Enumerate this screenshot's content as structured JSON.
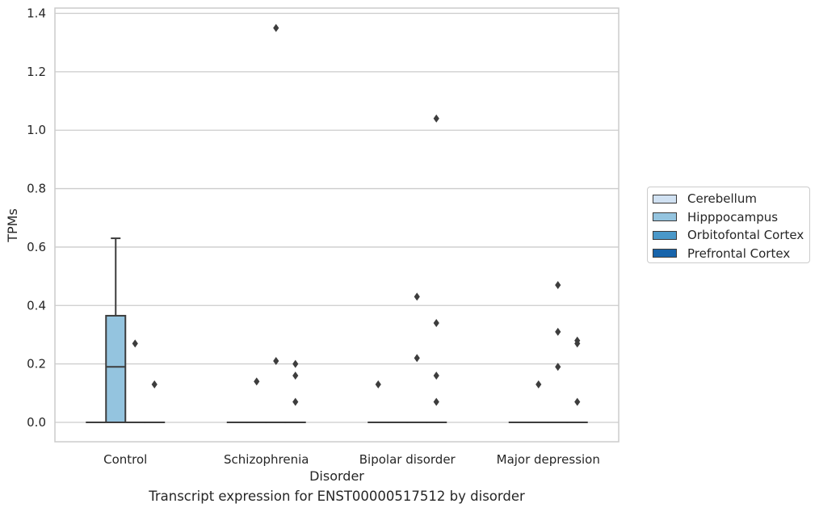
{
  "chart_data": {
    "type": "box",
    "title": "",
    "xlabel": "Disorder",
    "ylabel": "TPMs",
    "caption": "Transcript expression for ENST00000517512 by disorder",
    "categories": [
      "Control",
      "Schizophrenia",
      "Bipolar disorder",
      "Major depression"
    ],
    "ylim": [
      -0.065,
      1.42
    ],
    "yticks": [
      0.0,
      0.2,
      0.4,
      0.6,
      0.8,
      1.0,
      1.2,
      1.4
    ],
    "ytick_labels": [
      "0.0",
      "0.2",
      "0.4",
      "0.6",
      "0.8",
      "1.0",
      "1.2",
      "1.4"
    ],
    "grid": true,
    "legend_position": "right",
    "series": [
      {
        "name": "Cerebellum",
        "color": "#d0e1f2",
        "boxes": [
          {
            "q1": 0,
            "median": 0,
            "q3": 0,
            "whisker_low": 0,
            "whisker_high": 0,
            "outliers": []
          },
          {
            "q1": 0,
            "median": 0,
            "q3": 0,
            "whisker_low": 0,
            "whisker_high": 0,
            "outliers": []
          },
          {
            "q1": 0,
            "median": 0,
            "q3": 0,
            "whisker_low": 0,
            "whisker_high": 0,
            "outliers": [
              0.13
            ]
          },
          {
            "q1": 0,
            "median": 0,
            "q3": 0,
            "whisker_low": 0,
            "whisker_high": 0,
            "outliers": []
          }
        ]
      },
      {
        "name": "Hipppocampus",
        "color": "#94c4df",
        "boxes": [
          {
            "q1": 0,
            "median": 0.19,
            "q3": 0.365,
            "whisker_low": 0,
            "whisker_high": 0.63,
            "outliers": []
          },
          {
            "q1": 0,
            "median": 0,
            "q3": 0,
            "whisker_low": 0,
            "whisker_high": 0,
            "outliers": [
              0.14
            ]
          },
          {
            "q1": 0,
            "median": 0,
            "q3": 0,
            "whisker_low": 0,
            "whisker_high": 0,
            "outliers": []
          },
          {
            "q1": 0,
            "median": 0,
            "q3": 0,
            "whisker_low": 0,
            "whisker_high": 0,
            "outliers": [
              0.13
            ]
          }
        ]
      },
      {
        "name": "Orbitofontal Cortex",
        "color": "#4a98c9",
        "boxes": [
          {
            "q1": 0,
            "median": 0,
            "q3": 0,
            "whisker_low": 0,
            "whisker_high": 0,
            "outliers": [
              0.27
            ]
          },
          {
            "q1": 0,
            "median": 0,
            "q3": 0,
            "whisker_low": 0,
            "whisker_high": 0,
            "outliers": [
              0.21,
              1.35
            ]
          },
          {
            "q1": 0,
            "median": 0,
            "q3": 0,
            "whisker_low": 0,
            "whisker_high": 0,
            "outliers": [
              0.43,
              0.22
            ]
          },
          {
            "q1": 0,
            "median": 0,
            "q3": 0,
            "whisker_low": 0,
            "whisker_high": 0,
            "outliers": [
              0.47,
              0.31,
              0.19
            ]
          }
        ]
      },
      {
        "name": "Prefrontal Cortex",
        "color": "#1764ab",
        "boxes": [
          {
            "q1": 0,
            "median": 0,
            "q3": 0,
            "whisker_low": 0,
            "whisker_high": 0,
            "outliers": [
              0.13
            ]
          },
          {
            "q1": 0,
            "median": 0,
            "q3": 0,
            "whisker_low": 0,
            "whisker_high": 0,
            "outliers": [
              0.2,
              0.07,
              0.16
            ]
          },
          {
            "q1": 0,
            "median": 0,
            "q3": 0,
            "whisker_low": 0,
            "whisker_high": 0,
            "outliers": [
              1.04,
              0.34,
              0.07,
              0.16
            ]
          },
          {
            "q1": 0,
            "median": 0,
            "q3": 0,
            "whisker_low": 0,
            "whisker_high": 0,
            "outliers": [
              0.27,
              0.07,
              0.28
            ]
          }
        ]
      }
    ]
  }
}
